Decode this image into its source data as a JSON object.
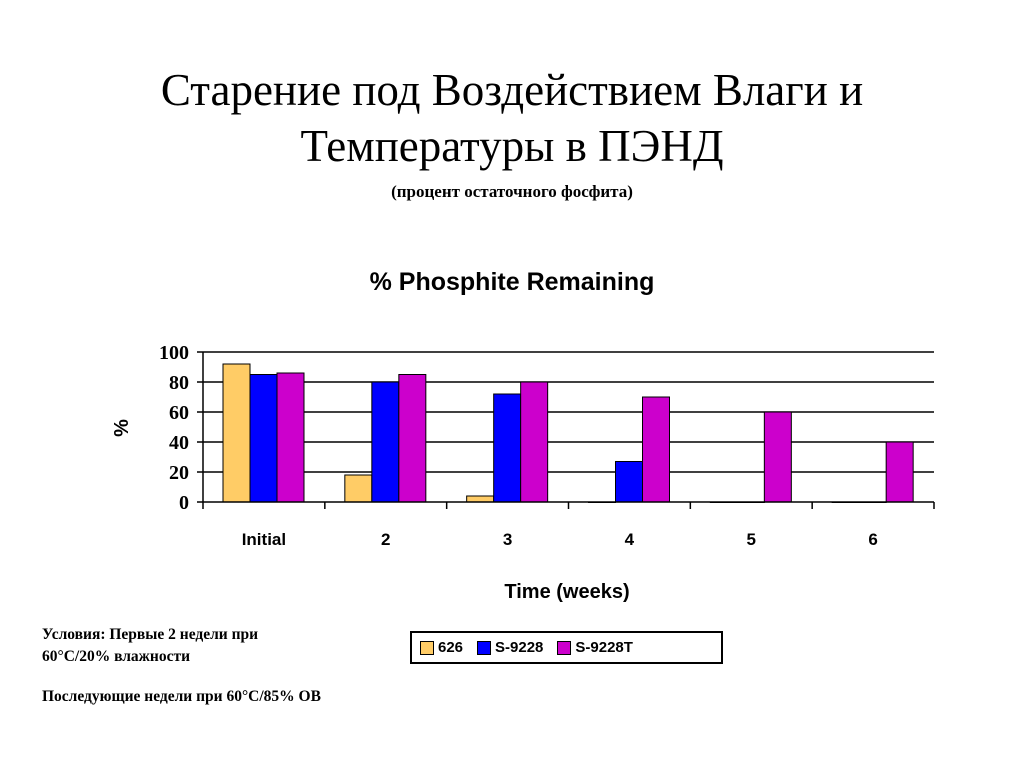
{
  "slide": {
    "title_line1": "Старение под Воздействием Влаги и",
    "title_line2": "Температуры в ПЭНД",
    "subtitle": "(процент остаточного фосфита)"
  },
  "chart_data": {
    "type": "bar",
    "title": "% Phosphite Remaining",
    "xlabel": "Time (weeks)",
    "ylabel": "%",
    "ylim": [
      0,
      100
    ],
    "yticks": [
      0,
      20,
      40,
      60,
      80,
      100
    ],
    "grid": true,
    "legend_position": "bottom",
    "categories": [
      "Initial",
      "2",
      "3",
      "4",
      "5",
      "6"
    ],
    "series": [
      {
        "name": "626",
        "color": "#FFCC66",
        "values": [
          92,
          18,
          4,
          0,
          0,
          0
        ]
      },
      {
        "name": "S-9228",
        "color": "#0000FF",
        "values": [
          85,
          80,
          72,
          27,
          0,
          0
        ]
      },
      {
        "name": "S-9228T",
        "color": "#CC00CC",
        "values": [
          86,
          85,
          80,
          70,
          60,
          40
        ]
      }
    ]
  },
  "notes": {
    "line1": "Условия: Первые 2 недели при",
    "line2": "60°C/20%  влажности",
    "line3": "Последующие недели при 60°C/85% ОВ"
  }
}
